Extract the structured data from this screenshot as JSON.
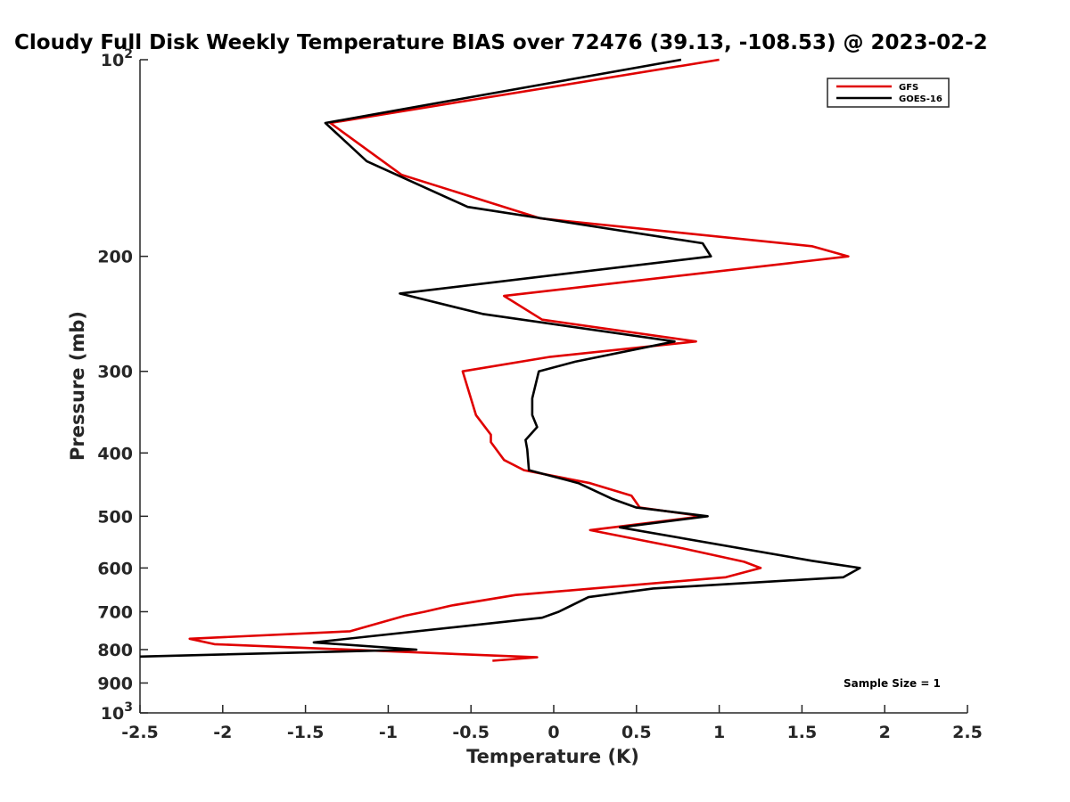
{
  "chart_data": {
    "type": "line",
    "title": "Cloudy Full Disk Weekly Temperature BIAS over 72476 (39.13, -108.53) @ 2023-02-2",
    "xlabel": "Temperature (K)",
    "ylabel": "Pressure (mb)",
    "xlim": [
      -2.5,
      2.5
    ],
    "ylim": [
      100,
      1000
    ],
    "y_scale": "log",
    "y_reversed": true,
    "grid": false,
    "legend_position": "top-right",
    "x_ticks": [
      -2.5,
      -2,
      -1.5,
      -1,
      -0.5,
      0,
      0.5,
      1,
      1.5,
      2,
      2.5
    ],
    "x_tick_labels": [
      "-2.5",
      "-2",
      "-1.5",
      "-1",
      "-0.5",
      "0",
      "0.5",
      "1",
      "1.5",
      "2",
      "2.5"
    ],
    "y_ticks": [
      100,
      200,
      300,
      400,
      500,
      600,
      700,
      800,
      900,
      1000
    ],
    "y_tick_labels": [
      {
        "base": "10",
        "exp": "2"
      },
      {
        "base": "200",
        "exp": ""
      },
      {
        "base": "300",
        "exp": ""
      },
      {
        "base": "400",
        "exp": ""
      },
      {
        "base": "500",
        "exp": ""
      },
      {
        "base": "600",
        "exp": ""
      },
      {
        "base": "700",
        "exp": ""
      },
      {
        "base": "800",
        "exp": ""
      },
      {
        "base": "900",
        "exp": ""
      },
      {
        "base": "10",
        "exp": "3"
      }
    ],
    "series": [
      {
        "name": "GFS",
        "color": "#e00000",
        "points": [
          [
            1.0,
            100
          ],
          [
            -1.35,
            125
          ],
          [
            -0.92,
            150
          ],
          [
            -0.08,
            175
          ],
          [
            1.56,
            193
          ],
          [
            1.78,
            200
          ],
          [
            -0.3,
            230
          ],
          [
            -0.07,
            250
          ],
          [
            0.86,
            270
          ],
          [
            -0.02,
            285
          ],
          [
            -0.55,
            300
          ],
          [
            -0.47,
            350
          ],
          [
            -0.38,
            375
          ],
          [
            -0.38,
            385
          ],
          [
            -0.3,
            410
          ],
          [
            -0.18,
            425
          ],
          [
            0.22,
            445
          ],
          [
            0.47,
            465
          ],
          [
            0.52,
            485
          ],
          [
            0.9,
            500
          ],
          [
            0.22,
            525
          ],
          [
            0.78,
            560
          ],
          [
            1.15,
            587
          ],
          [
            1.25,
            600
          ],
          [
            1.04,
            620
          ],
          [
            -0.23,
            660
          ],
          [
            -0.62,
            685
          ],
          [
            -0.78,
            700
          ],
          [
            -0.9,
            710
          ],
          [
            -1.23,
            750
          ],
          [
            -2.2,
            770
          ],
          [
            -2.05,
            785
          ],
          [
            -0.1,
            822
          ],
          [
            -0.37,
            832
          ]
        ]
      },
      {
        "name": "GOES-16",
        "color": "#000000",
        "points": [
          [
            0.77,
            100
          ],
          [
            -1.38,
            125
          ],
          [
            -1.13,
            143
          ],
          [
            -0.52,
            168
          ],
          [
            0.9,
            191
          ],
          [
            0.95,
            200
          ],
          [
            -0.93,
            228
          ],
          [
            -0.43,
            245
          ],
          [
            0.73,
            270
          ],
          [
            0.13,
            290
          ],
          [
            -0.09,
            300
          ],
          [
            -0.13,
            330
          ],
          [
            -0.13,
            350
          ],
          [
            -0.1,
            365
          ],
          [
            -0.17,
            382
          ],
          [
            -0.16,
            395
          ],
          [
            -0.15,
            425
          ],
          [
            0.15,
            445
          ],
          [
            0.35,
            470
          ],
          [
            0.5,
            485
          ],
          [
            0.93,
            500
          ],
          [
            0.4,
            520
          ],
          [
            1.56,
            585
          ],
          [
            1.85,
            600
          ],
          [
            1.75,
            620
          ],
          [
            0.6,
            645
          ],
          [
            0.21,
            665
          ],
          [
            0.03,
            700
          ],
          [
            -0.07,
            715
          ],
          [
            -1.45,
            780
          ],
          [
            -0.83,
            800
          ],
          [
            -2.5,
            820
          ]
        ]
      }
    ],
    "annotations": [
      "Sample Size = 1"
    ]
  }
}
